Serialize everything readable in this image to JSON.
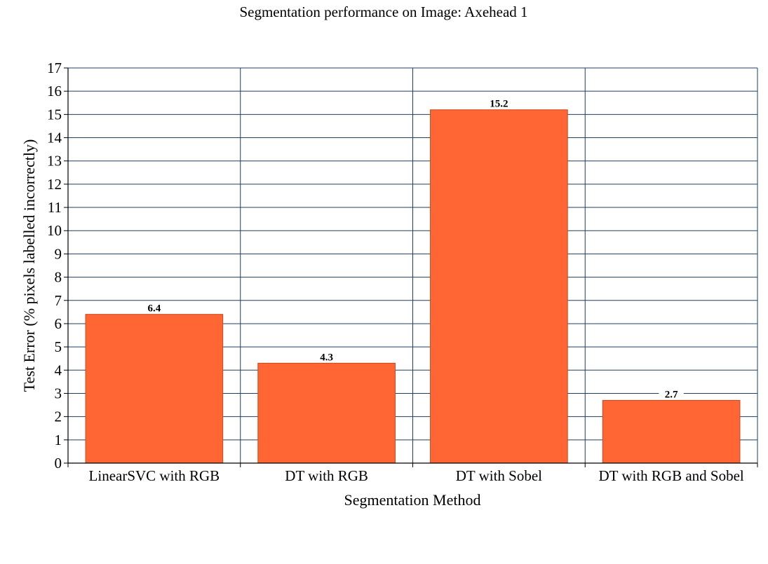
{
  "chart_data": {
    "type": "bar",
    "title": "Segmentation performance on Image: Axehead 1",
    "xlabel": "Segmentation Method",
    "ylabel": "Test Error (% pixels labelled incorrectly)",
    "categories": [
      "LinearSVC with RGB",
      "DT with RGB",
      "DT with Sobel",
      "DT with RGB and Sobel"
    ],
    "values": [
      6.4,
      4.3,
      15.2,
      2.7
    ],
    "data_labels": [
      "6.4",
      "4.3",
      "15.2",
      "2.7"
    ],
    "ylim": [
      0,
      17
    ],
    "yticks": [
      "0",
      "1",
      "2",
      "3",
      "4",
      "5",
      "6",
      "7",
      "8",
      "9",
      "10",
      "11",
      "12",
      "13",
      "14",
      "15",
      "16",
      "17"
    ],
    "grid": true,
    "legend": "none",
    "colors": {
      "bar": "#ff6633",
      "bar_edge": "#c8471c",
      "grid": "#1f3f5f",
      "axis": "#000000"
    }
  }
}
